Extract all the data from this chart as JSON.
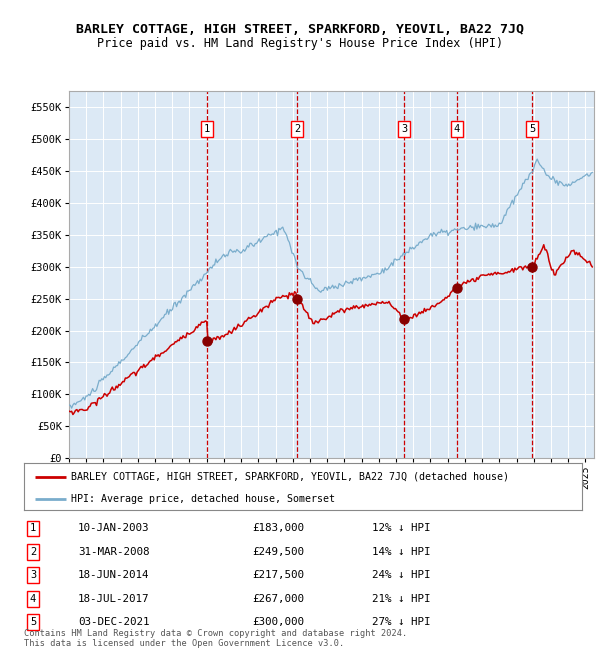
{
  "title": "BARLEY COTTAGE, HIGH STREET, SPARKFORD, YEOVIL, BA22 7JQ",
  "subtitle": "Price paid vs. HM Land Registry's House Price Index (HPI)",
  "ylim": [
    0,
    575000
  ],
  "yticks": [
    0,
    50000,
    100000,
    150000,
    200000,
    250000,
    300000,
    350000,
    400000,
    450000,
    500000,
    550000
  ],
  "ytick_labels": [
    "£0",
    "£50K",
    "£100K",
    "£150K",
    "£200K",
    "£250K",
    "£300K",
    "£350K",
    "£400K",
    "£450K",
    "£500K",
    "£550K"
  ],
  "xlim_start": 1995.0,
  "xlim_end": 2025.5,
  "plot_bg_color": "#dce9f5",
  "grid_color": "#ffffff",
  "sale_dates": [
    2003.03,
    2008.25,
    2014.46,
    2017.54,
    2021.92
  ],
  "sale_prices": [
    183000,
    249500,
    217500,
    267000,
    300000
  ],
  "sale_labels": [
    "1",
    "2",
    "3",
    "4",
    "5"
  ],
  "red_line_color": "#cc0000",
  "blue_line_color": "#7aadcc",
  "sale_marker_color": "#880000",
  "dashed_line_color": "#cc0000",
  "legend_label_red": "BARLEY COTTAGE, HIGH STREET, SPARKFORD, YEOVIL, BA22 7JQ (detached house)",
  "legend_label_blue": "HPI: Average price, detached house, Somerset",
  "table_rows": [
    [
      "1",
      "10-JAN-2003",
      "£183,000",
      "12% ↓ HPI"
    ],
    [
      "2",
      "31-MAR-2008",
      "£249,500",
      "14% ↓ HPI"
    ],
    [
      "3",
      "18-JUN-2014",
      "£217,500",
      "24% ↓ HPI"
    ],
    [
      "4",
      "18-JUL-2017",
      "£267,000",
      "21% ↓ HPI"
    ],
    [
      "5",
      "03-DEC-2021",
      "£300,000",
      "27% ↓ HPI"
    ]
  ],
  "footer": "Contains HM Land Registry data © Crown copyright and database right 2024.\nThis data is licensed under the Open Government Licence v3.0."
}
